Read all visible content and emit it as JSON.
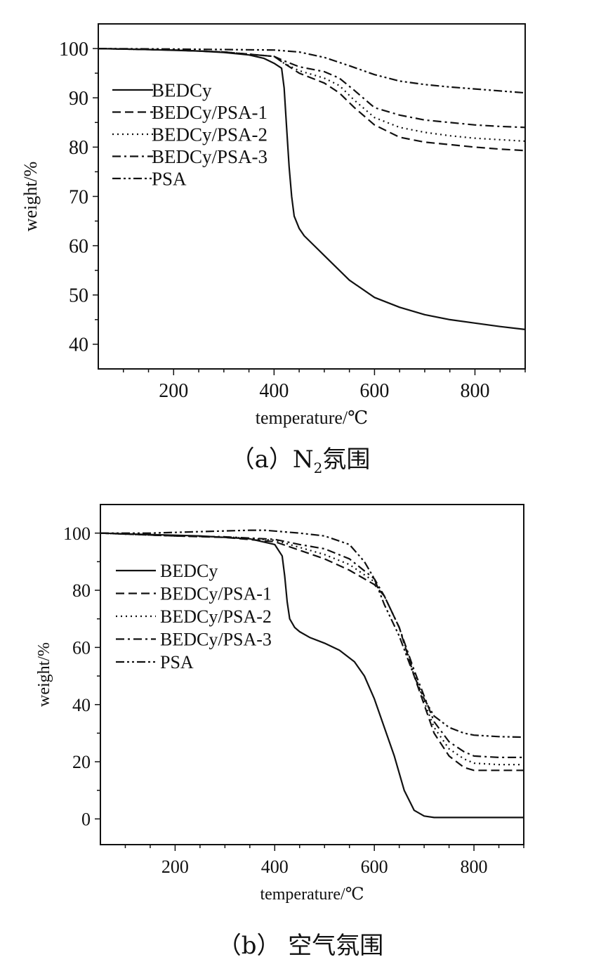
{
  "chart_data": [
    {
      "type": "line",
      "caption": {
        "prefix": "（a）",
        "n": "N",
        "sub": "2",
        "suffix": "氛围"
      },
      "xlabel": "temperature/℃",
      "ylabel": "weight/%",
      "xlim": [
        50,
        900
      ],
      "ylim": [
        35,
        105
      ],
      "xticks": [
        200,
        400,
        600,
        800
      ],
      "yticks": [
        40,
        50,
        60,
        70,
        80,
        90,
        100
      ],
      "legend_position": "top-left",
      "series": [
        {
          "name": "BEDCy",
          "dash": "solid",
          "x": [
            50,
            150,
            250,
            300,
            350,
            380,
            400,
            415,
            420,
            425,
            430,
            435,
            440,
            450,
            460,
            480,
            500,
            550,
            600,
            650,
            700,
            750,
            800,
            850,
            900
          ],
          "y": [
            100,
            99.8,
            99.5,
            99.2,
            98.7,
            98,
            97,
            96,
            92,
            84,
            76,
            70,
            66,
            63.5,
            62,
            60,
            58,
            53,
            49.5,
            47.5,
            46,
            45,
            44.3,
            43.6,
            43
          ]
        },
        {
          "name": "BEDCy/PSA-1",
          "dash": "longdash",
          "x": [
            50,
            200,
            300,
            400,
            420,
            450,
            500,
            530,
            560,
            600,
            650,
            700,
            750,
            800,
            850,
            900
          ],
          "y": [
            100,
            99.7,
            99.3,
            98.4,
            97,
            95,
            93,
            91,
            88,
            84.5,
            82,
            81,
            80.5,
            80,
            79.6,
            79.3
          ]
        },
        {
          "name": "BEDCy/PSA-2",
          "dash": "dotted",
          "x": [
            50,
            200,
            300,
            400,
            420,
            450,
            500,
            530,
            560,
            600,
            650,
            700,
            750,
            800,
            850,
            900
          ],
          "y": [
            100,
            99.7,
            99.3,
            98.4,
            97,
            95.5,
            94,
            92.5,
            89.5,
            86,
            84,
            83,
            82.3,
            81.8,
            81.5,
            81.2
          ]
        },
        {
          "name": "BEDCy/PSA-3",
          "dash": "dashdot",
          "x": [
            50,
            200,
            300,
            400,
            420,
            450,
            500,
            530,
            560,
            600,
            650,
            700,
            750,
            800,
            850,
            900
          ],
          "y": [
            100,
            99.7,
            99.3,
            98.4,
            97.5,
            96.3,
            95.3,
            94,
            91.5,
            88,
            86.5,
            85.5,
            85,
            84.5,
            84.2,
            84
          ]
        },
        {
          "name": "PSA",
          "dash": "dashdotdot",
          "x": [
            50,
            200,
            300,
            400,
            450,
            500,
            550,
            600,
            650,
            700,
            750,
            800,
            850,
            900
          ],
          "y": [
            100,
            99.9,
            99.8,
            99.7,
            99.3,
            98.2,
            96.5,
            94.7,
            93.4,
            92.7,
            92.2,
            91.8,
            91.4,
            91
          ]
        }
      ]
    },
    {
      "type": "line",
      "caption": {
        "text": "（b）  空气氛围"
      },
      "xlabel": "temperature/℃",
      "ylabel": "weight/%",
      "xlim": [
        50,
        900
      ],
      "ylim": [
        -9,
        110
      ],
      "xticks": [
        200,
        400,
        600,
        800
      ],
      "yticks": [
        0,
        20,
        40,
        60,
        80,
        100
      ],
      "legend_position": "top-left",
      "series": [
        {
          "name": "BEDCy",
          "dash": "solid",
          "x": [
            50,
            150,
            250,
            350,
            400,
            415,
            420,
            425,
            430,
            440,
            450,
            470,
            500,
            530,
            560,
            580,
            600,
            620,
            640,
            660,
            680,
            700,
            720,
            760,
            800,
            850,
            900
          ],
          "y": [
            100,
            99.5,
            99,
            98,
            96,
            92,
            85,
            76,
            70,
            67,
            65.5,
            63.5,
            61.5,
            59,
            55,
            50,
            42,
            32,
            22,
            10,
            3,
            1,
            0.5,
            0.5,
            0.5,
            0.5,
            0.5
          ]
        },
        {
          "name": "BEDCy/PSA-1",
          "dash": "longdash",
          "x": [
            50,
            200,
            300,
            400,
            450,
            500,
            550,
            600,
            620,
            650,
            680,
            700,
            720,
            750,
            780,
            800,
            850,
            900
          ],
          "y": [
            100,
            99,
            98.5,
            97,
            94,
            91,
            87,
            82,
            78,
            67,
            50,
            40,
            30,
            22,
            18,
            17,
            17,
            17
          ]
        },
        {
          "name": "BEDCy/PSA-2",
          "dash": "dotted",
          "x": [
            50,
            200,
            300,
            400,
            450,
            500,
            550,
            600,
            620,
            650,
            680,
            700,
            720,
            750,
            780,
            800,
            850,
            900
          ],
          "y": [
            100,
            99,
            98.7,
            97.5,
            95,
            92.5,
            89,
            83,
            78,
            67,
            51,
            41,
            32,
            24.5,
            21,
            19.5,
            19,
            19
          ]
        },
        {
          "name": "BEDCy/PSA-3",
          "dash": "dashdot",
          "x": [
            50,
            200,
            300,
            400,
            450,
            500,
            550,
            600,
            620,
            650,
            680,
            700,
            720,
            750,
            780,
            800,
            850,
            900
          ],
          "y": [
            100,
            99,
            98.7,
            97.8,
            96,
            94.5,
            91,
            84,
            78,
            67,
            52,
            43,
            34,
            27,
            23.5,
            22,
            21.5,
            21.5
          ]
        },
        {
          "name": "PSA",
          "dash": "dashdotdot",
          "x": [
            50,
            150,
            250,
            350,
            380,
            450,
            500,
            550,
            580,
            600,
            620,
            650,
            680,
            700,
            720,
            750,
            780,
            800,
            850,
            900
          ],
          "y": [
            100,
            100,
            100.5,
            101,
            101,
            100,
            99,
            96,
            90,
            84,
            75,
            64,
            50,
            42,
            36,
            32,
            30,
            29.3,
            28.8,
            28.6
          ]
        }
      ]
    }
  ]
}
